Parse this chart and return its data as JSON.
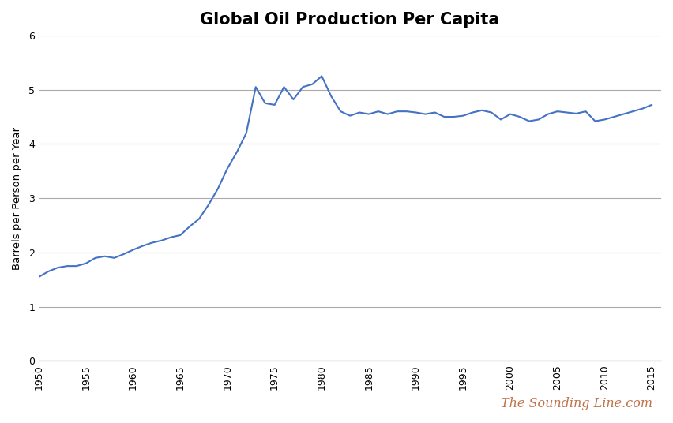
{
  "title": "Global Oil Production Per Capita",
  "ylabel": "Barrels per Person per Year",
  "watermark": "The Sounding Line.com",
  "line_color": "#4472C4",
  "background_color": "#FFFFFF",
  "ylim": [
    0,
    6
  ],
  "yticks": [
    0,
    1,
    2,
    3,
    4,
    5,
    6
  ],
  "xlim": [
    1950,
    2016
  ],
  "xticks": [
    1950,
    1955,
    1960,
    1965,
    1970,
    1975,
    1980,
    1985,
    1990,
    1995,
    2000,
    2005,
    2010,
    2015
  ],
  "years": [
    1950,
    1951,
    1952,
    1953,
    1954,
    1955,
    1956,
    1957,
    1958,
    1959,
    1960,
    1961,
    1962,
    1963,
    1964,
    1965,
    1966,
    1967,
    1968,
    1969,
    1970,
    1971,
    1972,
    1973,
    1974,
    1975,
    1976,
    1977,
    1978,
    1979,
    1980,
    1981,
    1982,
    1983,
    1984,
    1985,
    1986,
    1987,
    1988,
    1989,
    1990,
    1991,
    1992,
    1993,
    1994,
    1995,
    1996,
    1997,
    1998,
    1999,
    2000,
    2001,
    2002,
    2003,
    2004,
    2005,
    2006,
    2007,
    2008,
    2009,
    2010,
    2011,
    2012,
    2013,
    2014,
    2015
  ],
  "values": [
    1.55,
    1.65,
    1.72,
    1.75,
    1.75,
    1.8,
    1.9,
    1.93,
    1.9,
    1.97,
    2.05,
    2.12,
    2.18,
    2.22,
    2.28,
    2.32,
    2.48,
    2.62,
    2.88,
    3.18,
    3.55,
    3.85,
    4.2,
    5.05,
    4.75,
    4.72,
    5.05,
    4.82,
    5.05,
    5.1,
    5.25,
    4.88,
    4.6,
    4.52,
    4.58,
    4.55,
    4.6,
    4.55,
    4.6,
    4.6,
    4.58,
    4.55,
    4.58,
    4.5,
    4.5,
    4.52,
    4.58,
    4.62,
    4.58,
    4.45,
    4.55,
    4.5,
    4.42,
    4.45,
    4.55,
    4.6,
    4.58,
    4.56,
    4.6,
    4.42,
    4.45,
    4.5,
    4.55,
    4.6,
    4.65,
    4.72
  ]
}
